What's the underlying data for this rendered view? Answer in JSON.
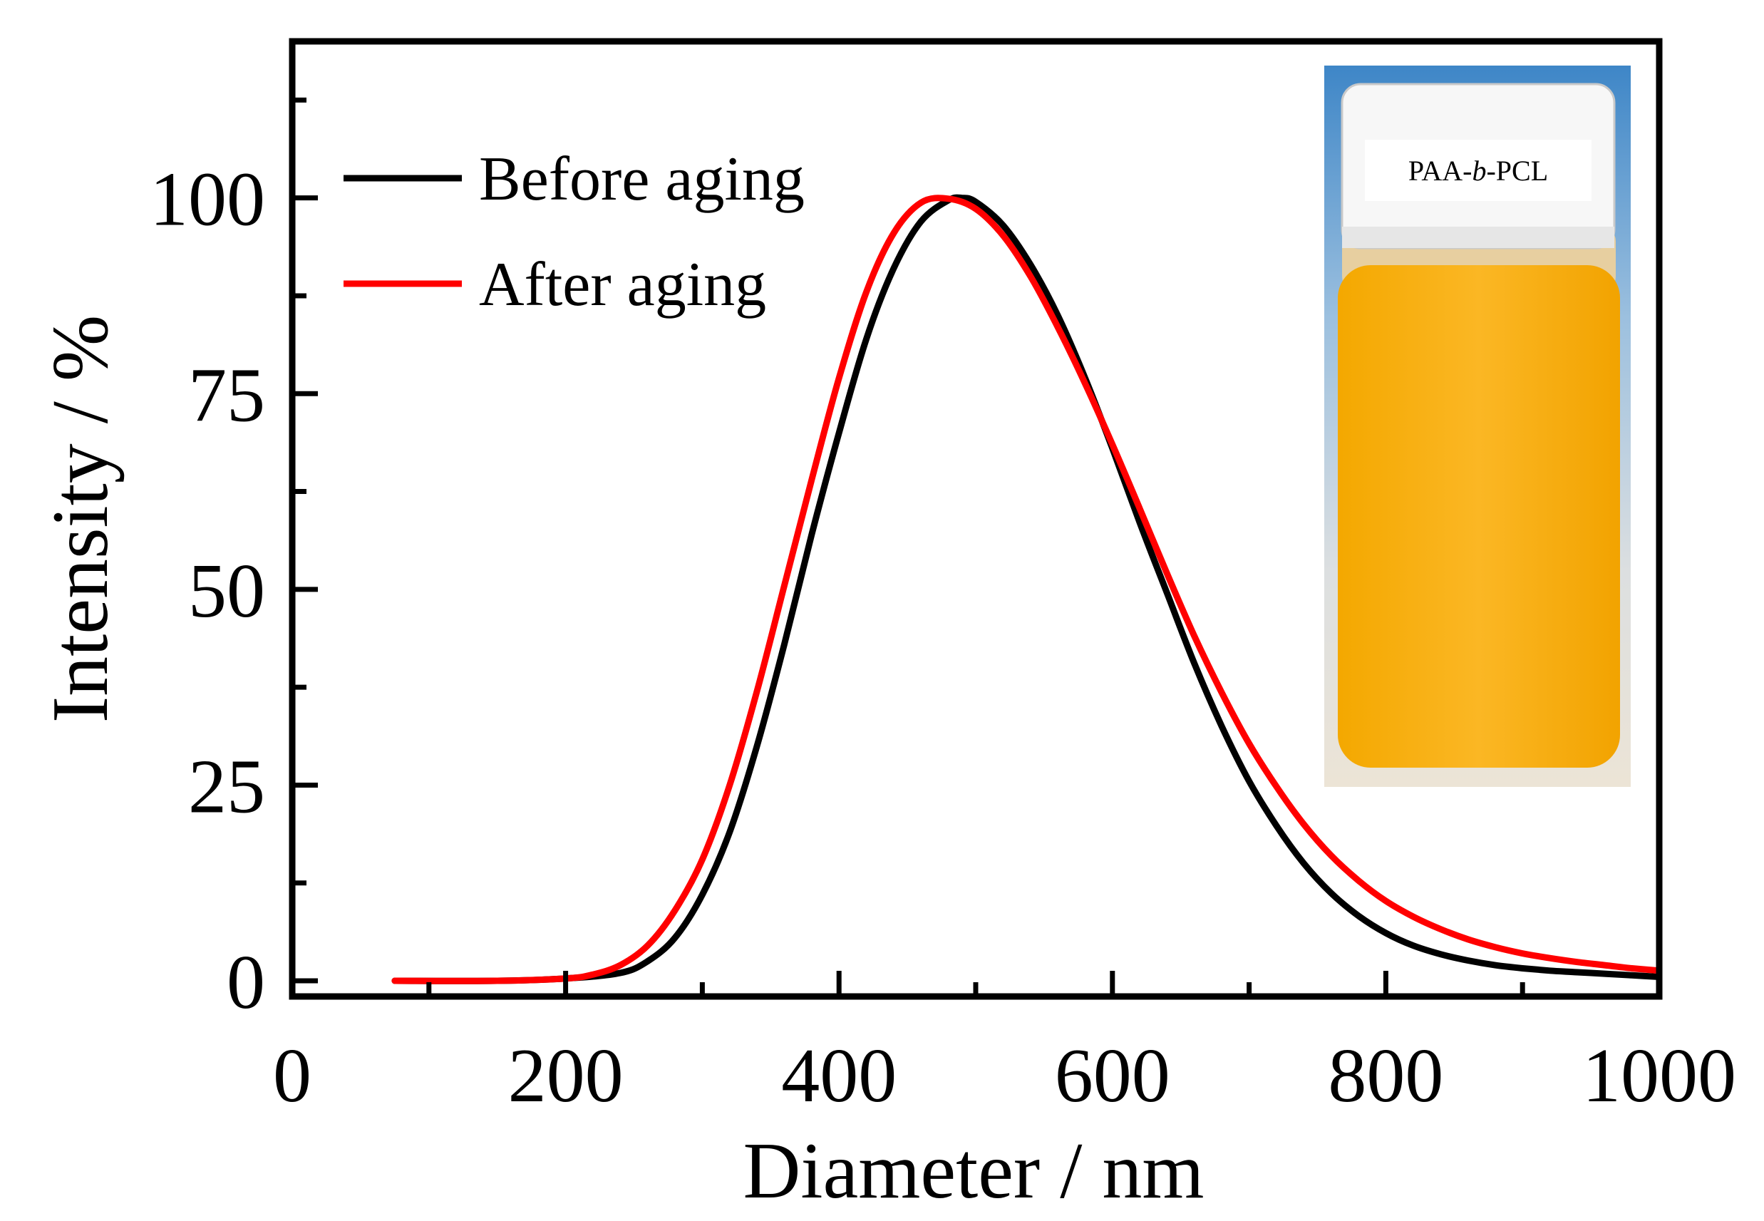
{
  "chart_data": {
    "type": "line",
    "title": "",
    "xlabel": "Diameter / nm",
    "ylabel": "Intensity / %",
    "xlim": [
      0,
      1000
    ],
    "ylim": [
      -2,
      120
    ],
    "xticks": [
      0,
      200,
      400,
      600,
      800,
      1000
    ],
    "yticks": [
      0,
      25,
      50,
      75,
      100
    ],
    "legend_position": "top-left",
    "series": [
      {
        "name": "Before aging",
        "color": "#000000",
        "x": [
          75,
          150,
          200,
          240,
          260,
          280,
          300,
          320,
          340,
          360,
          380,
          400,
          420,
          440,
          460,
          480,
          490,
          500,
          520,
          540,
          560,
          580,
          600,
          620,
          640,
          660,
          680,
          700,
          720,
          740,
          760,
          780,
          800,
          820,
          840,
          860,
          880,
          900,
          920,
          940,
          960,
          980,
          1000
        ],
        "y": [
          0,
          0,
          0.3,
          1,
          2.5,
          5.5,
          11,
          19,
          30,
          43,
          57,
          70,
          82,
          91,
          97,
          99.7,
          100,
          99.5,
          96.5,
          91.5,
          85,
          77,
          68,
          58.5,
          49.5,
          40.5,
          32.5,
          25.5,
          19.8,
          15,
          11.2,
          8.3,
          6.1,
          4.5,
          3.4,
          2.6,
          2,
          1.6,
          1.3,
          1.1,
          0.9,
          0.7,
          0.5
        ]
      },
      {
        "name": "After aging",
        "color": "#ff0000",
        "x": [
          75,
          150,
          200,
          220,
          240,
          260,
          280,
          300,
          320,
          340,
          360,
          380,
          400,
          420,
          440,
          460,
          480,
          500,
          520,
          540,
          560,
          580,
          600,
          620,
          640,
          660,
          680,
          700,
          720,
          740,
          760,
          780,
          800,
          820,
          840,
          860,
          880,
          900,
          920,
          940,
          960,
          980,
          1000
        ],
        "y": [
          0,
          0,
          0.3,
          0.8,
          2,
          4.5,
          9,
          15.5,
          25,
          37,
          50.5,
          64,
          77,
          88,
          95.5,
          99.4,
          99.9,
          98.6,
          95.2,
          90,
          83.5,
          76.3,
          68.5,
          60.3,
          52,
          44,
          36.8,
          30.3,
          24.8,
          20,
          16,
          12.8,
          10.2,
          8.2,
          6.6,
          5.3,
          4.3,
          3.5,
          2.9,
          2.4,
          2,
          1.6,
          1.3
        ]
      }
    ],
    "inset": {
      "label_prefix": "PAA-",
      "label_italic": "b",
      "label_suffix": "-PCL",
      "liquid_color": "#f9b21a"
    }
  }
}
